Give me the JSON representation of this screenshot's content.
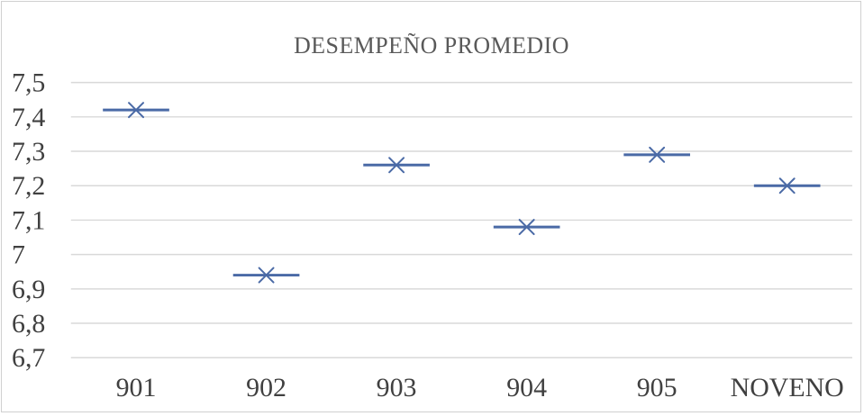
{
  "chart_data": {
    "type": "scatter",
    "title": "DESEMPEÑO  PROMEDIO",
    "xlabel": "",
    "ylabel": "",
    "categories": [
      "901",
      "902",
      "903",
      "904",
      "905",
      "NOVENO"
    ],
    "values": [
      7.42,
      6.94,
      7.26,
      7.08,
      7.29,
      7.2
    ],
    "ylim": [
      6.7,
      7.5
    ],
    "yticks": [
      "6,7",
      "6,8",
      "6,9",
      "7",
      "7,1",
      "7,2",
      "7,3",
      "7,4",
      "7,5"
    ],
    "ytick_values": [
      6.7,
      6.8,
      6.9,
      7.0,
      7.1,
      7.2,
      7.3,
      7.4,
      7.5
    ],
    "grid": true,
    "legend": "none",
    "marker": "dash-with-x",
    "colors": {
      "marker": "#4a6aa6",
      "grid": "#d9d9d9",
      "text": "#404040",
      "title": "#595959"
    }
  }
}
